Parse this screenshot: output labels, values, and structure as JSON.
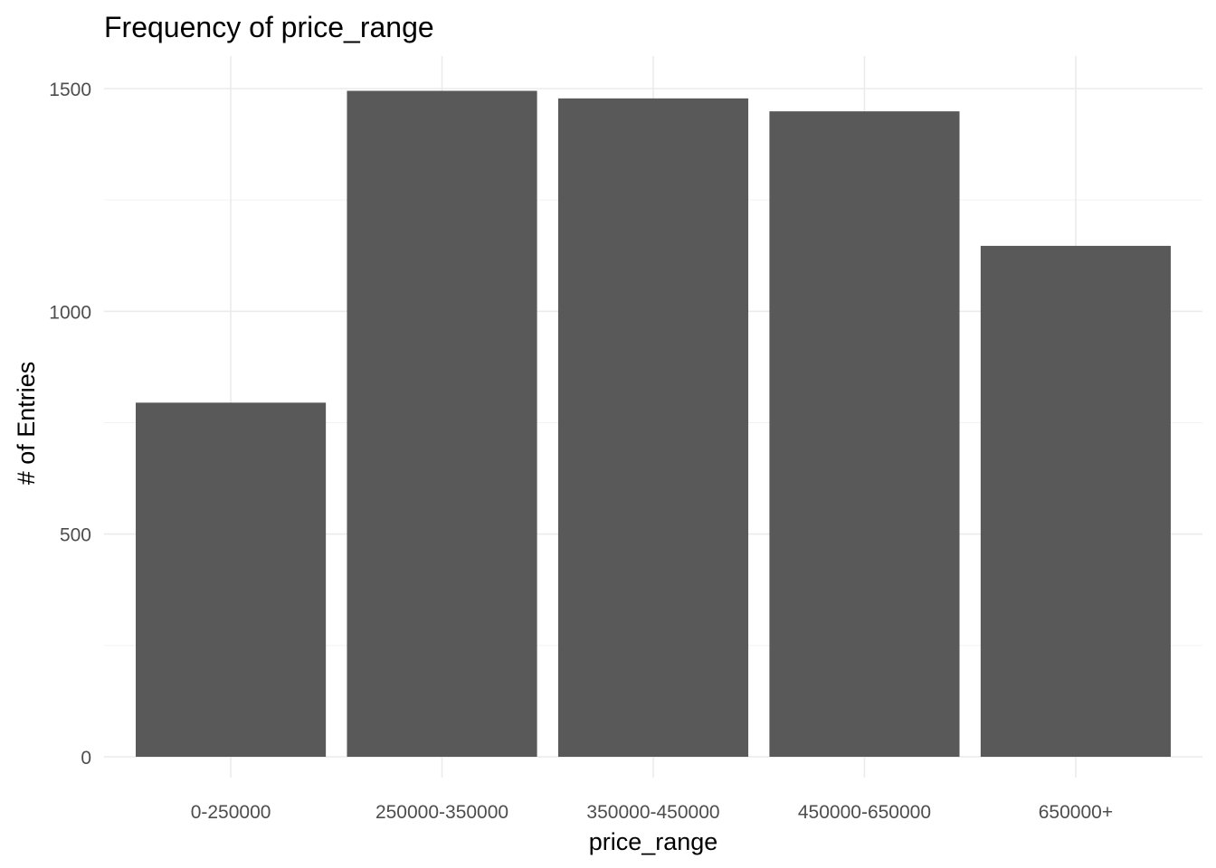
{
  "chart_data": {
    "type": "bar",
    "title": "Frequency of price_range",
    "xlabel": "price_range",
    "ylabel": "# of Entries",
    "categories": [
      "0-250000",
      "250000-350000",
      "350000-450000",
      "450000-650000",
      "650000+"
    ],
    "values": [
      795,
      1495,
      1478,
      1449,
      1147
    ],
    "yticks": [
      "0",
      "500",
      "1000",
      "1500"
    ],
    "ylim": [
      0,
      1570
    ],
    "grid": true,
    "legend": "none",
    "colors": {
      "bar": "#595959",
      "grid_major": "#ebebeb",
      "grid_minor": "#f2f2f2",
      "tick_text": "#4d4d4d",
      "text": "#000000",
      "background": "#ffffff"
    }
  }
}
